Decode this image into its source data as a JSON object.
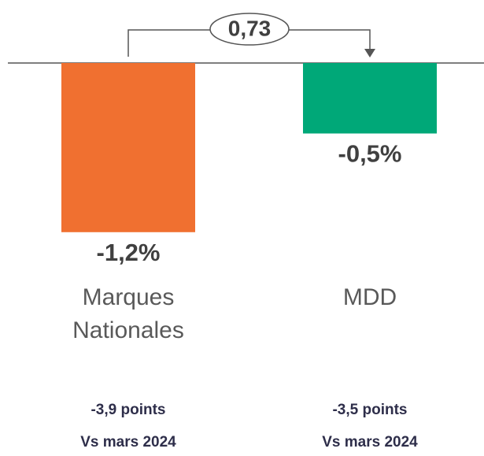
{
  "chart_data": {
    "type": "bar",
    "categories": [
      "Marques Nationales",
      "MDD"
    ],
    "values": [
      -1.2,
      -0.5
    ],
    "value_labels": [
      "-1,2%",
      "-0,5%"
    ],
    "colors": [
      "#f07030",
      "#00a878"
    ],
    "annotation": "0,73",
    "notes": [
      {
        "change": "-3,9 points",
        "reference": "Vs mars 2024"
      },
      {
        "change": "-3,5 points",
        "reference": "Vs mars 2024"
      }
    ]
  }
}
